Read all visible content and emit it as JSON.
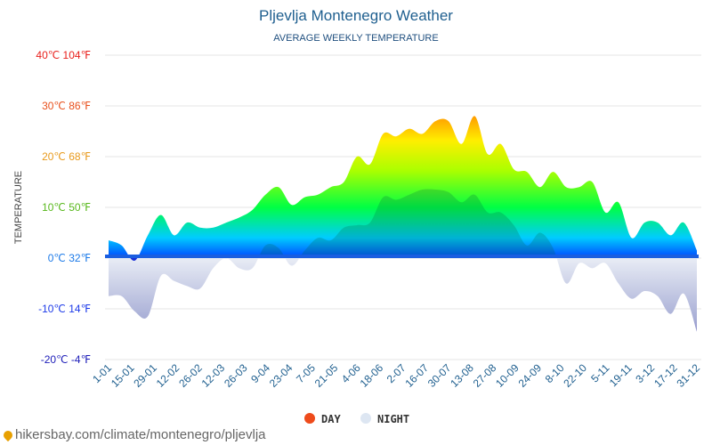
{
  "chart_data": {
    "type": "area",
    "title": "Pljevlja Montenegro Weather",
    "subtitle": "AVERAGE WEEKLY TEMPERATURE",
    "ylabel": "TEMPERATURE",
    "ylim": [
      -20,
      40
    ],
    "y_ticks": [
      {
        "value": 40,
        "label": "40℃ 104℉",
        "color": "#e8201c"
      },
      {
        "value": 30,
        "label": "30℃ 86℉",
        "color": "#e8501c"
      },
      {
        "value": 20,
        "label": "20℃ 68℉",
        "color": "#e89a1c"
      },
      {
        "value": 10,
        "label": "10℃ 50℉",
        "color": "#58b81c"
      },
      {
        "value": 0,
        "label": "0℃ 32℉",
        "color": "#1c7ae8"
      },
      {
        "value": -10,
        "label": "-10℃ 14℉",
        "color": "#1c3ae8"
      },
      {
        "value": -20,
        "label": "-20℃ -4℉",
        "color": "#1c1cb8"
      }
    ],
    "x_ticks": [
      "1-01",
      "15-01",
      "29-01",
      "12-02",
      "26-02",
      "12-03",
      "26-03",
      "9-04",
      "23-04",
      "7-05",
      "21-05",
      "4-06",
      "18-06",
      "2-07",
      "16-07",
      "30-07",
      "13-08",
      "27-08",
      "10-09",
      "24-09",
      "8-10",
      "22-10",
      "5-11",
      "19-11",
      "3-12",
      "17-12",
      "31-12"
    ],
    "legend": [
      {
        "label": "DAY",
        "color": "#ee4b1b"
      },
      {
        "label": "NIGHT",
        "color": "#dde6f2"
      }
    ],
    "series": [
      {
        "name": "DAY",
        "values": [
          3.5,
          2.5,
          -0.5,
          4.5,
          8.5,
          4.5,
          7,
          6,
          6,
          7,
          8,
          9.5,
          12.5,
          14,
          10.5,
          12,
          12.5,
          14,
          15,
          20,
          18.5,
          24.5,
          24,
          25.5,
          24.5,
          27,
          27,
          22.5,
          28,
          20.5,
          22.5,
          17.5,
          17,
          14,
          17,
          14,
          14,
          15,
          9,
          11,
          4,
          7,
          7,
          4.5,
          7,
          1.5
        ]
      },
      {
        "name": "NIGHT",
        "values": [
          -7.5,
          -7.5,
          -10.5,
          -11.5,
          -3.5,
          -4.5,
          -5.5,
          -6,
          -2,
          0,
          -2,
          -2,
          2.5,
          2,
          -1.5,
          1.5,
          4,
          3.5,
          6,
          6.5,
          7,
          12,
          11.5,
          12.5,
          13.5,
          13.5,
          13,
          11,
          12.5,
          9,
          9,
          6.5,
          2.5,
          5,
          2,
          -5,
          -1,
          -2,
          -1,
          -5,
          -8,
          -6.5,
          -7.5,
          -11,
          -7,
          -14.5
        ]
      }
    ]
  },
  "source": "hikersbay.com/climate/montenegro/pljevlja"
}
